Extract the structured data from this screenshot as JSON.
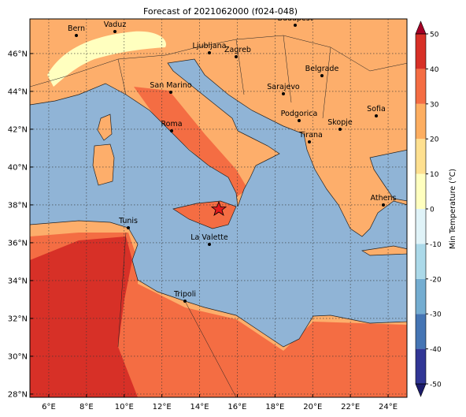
{
  "title": "Forecast of 2021062000 (f024-048)",
  "map": {
    "lonlim": [
      5,
      25
    ],
    "latlim": [
      27.83,
      47.83
    ],
    "lon_ticks": [
      {
        "value": 6,
        "label": "6°E"
      },
      {
        "value": 8,
        "label": "8°E"
      },
      {
        "value": 10,
        "label": "10°E"
      },
      {
        "value": 12,
        "label": "12°E"
      },
      {
        "value": 14,
        "label": "14°E"
      },
      {
        "value": 16,
        "label": "16°E"
      },
      {
        "value": 18,
        "label": "18°E"
      },
      {
        "value": 20,
        "label": "20°E"
      },
      {
        "value": 22,
        "label": "22°E"
      },
      {
        "value": 24,
        "label": "24°E"
      }
    ],
    "lat_ticks": [
      {
        "value": 28,
        "label": "28°N"
      },
      {
        "value": 30,
        "label": "30°N"
      },
      {
        "value": 32,
        "label": "32°N"
      },
      {
        "value": 34,
        "label": "34°N"
      },
      {
        "value": 36,
        "label": "36°N"
      },
      {
        "value": 38,
        "label": "38°N"
      },
      {
        "value": 40,
        "label": "40°N"
      },
      {
        "value": 42,
        "label": "42°N"
      },
      {
        "value": 44,
        "label": "44°N"
      },
      {
        "value": 46,
        "label": "46°N"
      }
    ],
    "grid": true,
    "cities": [
      "Bern",
      "Vaduz",
      "Budapest",
      "Ljubljana",
      "Zagreb",
      "Belgrade",
      "San Marino",
      "Sarajevo",
      "Roma",
      "Podgorica",
      "Skopje",
      "Sofia",
      "Tirana",
      "Athens",
      "Tunis",
      "La Valette",
      "Tripoli"
    ]
  },
  "colorbar": {
    "label": "Min Temperature (°C)",
    "lim": [
      -50,
      50
    ],
    "ticks": [
      -50,
      -40,
      -30,
      -20,
      -10,
      0,
      10,
      20,
      30,
      40,
      50
    ],
    "colors": [
      "#313695",
      "#4575b4",
      "#74add1",
      "#abd9e9",
      "#e0f3f8",
      "#ffffbf",
      "#fee090",
      "#fdae61",
      "#f46d43",
      "#d73027"
    ],
    "under_color": "#1c1c6b",
    "over_color": "#a50026"
  }
}
